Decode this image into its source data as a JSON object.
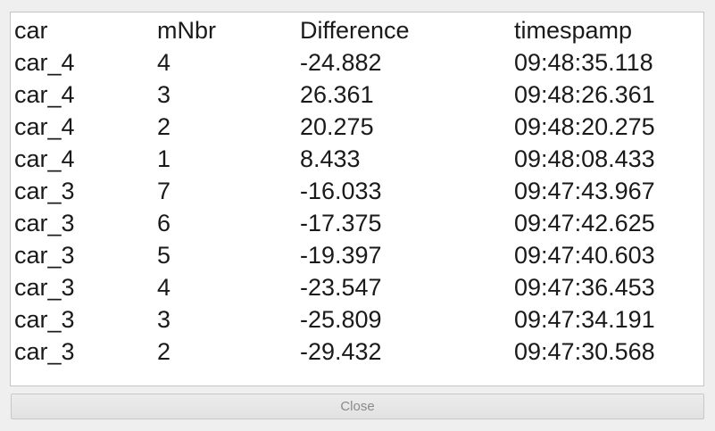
{
  "table": {
    "columns": [
      "car",
      "mNbr",
      "Difference",
      "timespamp"
    ],
    "rows": [
      [
        "car_4",
        "4",
        "-24.882",
        "09:48:35.118"
      ],
      [
        "car_4",
        "3",
        "26.361",
        "09:48:26.361"
      ],
      [
        "car_4",
        "2",
        "20.275",
        "09:48:20.275"
      ],
      [
        "car_4",
        "1",
        "8.433",
        "09:48:08.433"
      ],
      [
        "car_3",
        "7",
        "-16.033",
        "09:47:43.967"
      ],
      [
        "car_3",
        "6",
        "-17.375",
        "09:47:42.625"
      ],
      [
        "car_3",
        "5",
        "-19.397",
        "09:47:40.603"
      ],
      [
        "car_3",
        "4",
        "-23.547",
        "09:47:36.453"
      ],
      [
        "car_3",
        "3",
        "-25.809",
        "09:47:34.191"
      ],
      [
        "car_3",
        "2",
        "-29.432",
        "09:47:30.568"
      ]
    ]
  },
  "footer": {
    "close_label": "Close"
  },
  "colors": {
    "background": "#efefef",
    "table_background": "#ffffff",
    "text": "#1a1a1a",
    "button_text": "#8a8a8a"
  }
}
